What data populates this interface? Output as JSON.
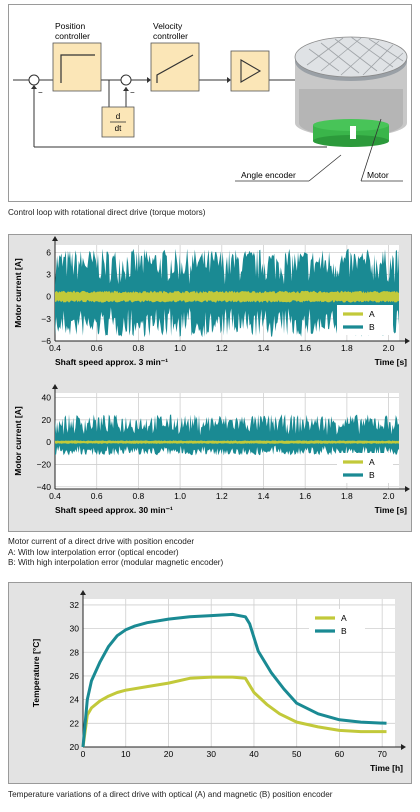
{
  "diagram": {
    "position_controller": [
      "Position",
      "controller"
    ],
    "velocity_controller": [
      "Velocity",
      "controller"
    ],
    "derivative": [
      "d",
      "dt"
    ],
    "angle_encoder": "Angle encoder",
    "motor": "Motor",
    "caption": "Control loop with rotational direct drive (torque motors)",
    "colors": {
      "block": "#fbe6b7",
      "encoder": "#3ab54a",
      "motor": "#c8c8c8"
    }
  },
  "motor_current": {
    "caption_lines": [
      "Motor current of a direct drive with position encoder",
      "A: With low interpolation error (optical encoder)",
      "B: With high interpolation error (modular magnetic encoder)"
    ]
  },
  "temperature": {
    "caption": "Temperature variations of a direct drive with optical (A) and magnetic (B) position encoder"
  },
  "chart_data": [
    {
      "type": "line",
      "ylabel": "Motor current [A]",
      "xlabel": "Time [s]",
      "subtitle": "Shaft speed approx. 3 min⁻¹",
      "xlim": [
        0.4,
        2.05
      ],
      "ylim": [
        -6,
        7
      ],
      "xticks": [
        0.4,
        0.6,
        0.8,
        1.0,
        1.2,
        1.4,
        1.6,
        1.8,
        2.0
      ],
      "xtick_labels": [
        "0.4",
        "0.6",
        "0.8",
        "1.0",
        "1.2",
        "1.4",
        "1.6",
        "1.8",
        "2.0"
      ],
      "yticks": [
        6,
        3,
        0,
        -3,
        -6
      ],
      "ytick_labels": [
        "6",
        "3",
        "0",
        "−3",
        "−6"
      ],
      "grid": true,
      "legend": "bottom-right",
      "series": [
        {
          "name": "A",
          "color": "#c2c93a",
          "envelope": [
            -0.8,
            0.8
          ]
        },
        {
          "name": "B",
          "color": "#1a8a93",
          "envelope": [
            -5.5,
            6.5
          ]
        }
      ]
    },
    {
      "type": "line",
      "ylabel": "Motor current [A]",
      "xlabel": "Time [s]",
      "subtitle": "Shaft speed approx. 30 min⁻¹",
      "xlim": [
        0.4,
        2.05
      ],
      "ylim": [
        -42,
        44
      ],
      "xticks": [
        0.4,
        0.6,
        0.8,
        1.0,
        1.2,
        1.4,
        1.6,
        1.8,
        2.0
      ],
      "xtick_labels": [
        "0.4",
        "0.6",
        "0.8",
        "1.0",
        "1.2",
        "1.4",
        "1.6",
        "1.8",
        "2.0"
      ],
      "yticks": [
        40,
        20,
        0,
        -20,
        -40
      ],
      "ytick_labels": [
        "40",
        "20",
        "0",
        "−20",
        "−40"
      ],
      "grid": true,
      "legend": "bottom-right",
      "series": [
        {
          "name": "A",
          "color": "#c2c93a",
          "envelope": [
            -1.5,
            1.5
          ]
        },
        {
          "name": "B",
          "color": "#1a8a93",
          "envelope": [
            -12,
            25
          ]
        }
      ]
    },
    {
      "type": "line",
      "ylabel": "Temperature [°C]",
      "xlabel": "Time [h]",
      "xlim": [
        0,
        73
      ],
      "ylim": [
        20,
        32.5
      ],
      "xticks": [
        0,
        10,
        20,
        30,
        40,
        50,
        60,
        70
      ],
      "yticks": [
        20,
        22,
        24,
        26,
        28,
        30,
        32
      ],
      "grid": true,
      "legend": "top-right",
      "series": [
        {
          "name": "A",
          "color": "#c2c93a",
          "x": [
            0,
            1,
            2,
            4,
            6,
            8,
            10,
            15,
            20,
            25,
            30,
            35,
            38,
            40,
            43,
            46,
            50,
            55,
            60,
            65,
            71
          ],
          "y": [
            20,
            22.7,
            23.3,
            23.9,
            24.3,
            24.6,
            24.8,
            25.1,
            25.4,
            25.8,
            25.9,
            25.9,
            25.8,
            24.6,
            23.6,
            22.8,
            22.1,
            21.7,
            21.4,
            21.3,
            21.3
          ]
        },
        {
          "name": "B",
          "color": "#1a8a93",
          "x": [
            0,
            1,
            2,
            4,
            6,
            8,
            10,
            12,
            15,
            20,
            25,
            30,
            35,
            38,
            39,
            41,
            44,
            47,
            50,
            55,
            60,
            65,
            71
          ],
          "y": [
            20,
            24.0,
            25.6,
            27.2,
            28.5,
            29.4,
            29.9,
            30.2,
            30.5,
            30.8,
            31.0,
            31.1,
            31.2,
            31.0,
            30.4,
            28.1,
            26.3,
            24.9,
            23.7,
            22.8,
            22.3,
            22.1,
            22.0
          ]
        }
      ]
    }
  ]
}
